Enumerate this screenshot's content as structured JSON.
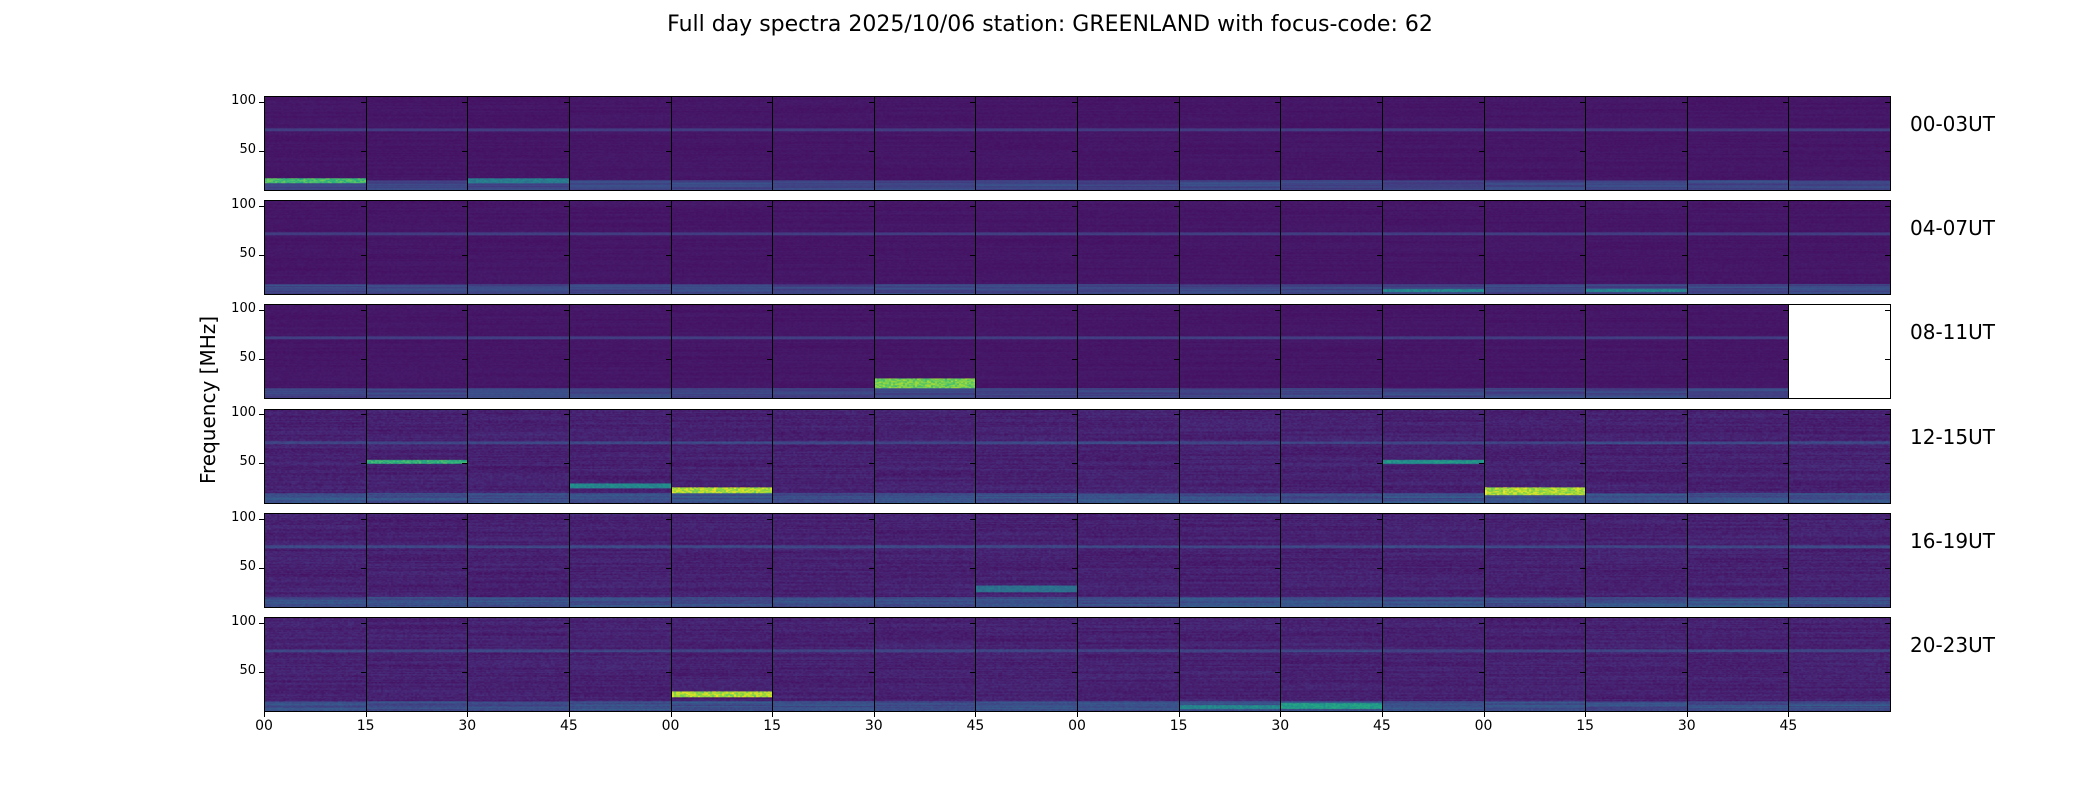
{
  "title": "Full day spectra 2025/10/06 station: GREENLAND with focus-code: 62",
  "chart_data": {
    "type": "heatmap",
    "title": "Full day spectra 2025/10/06 station: GREENLAND with focus-code: 62",
    "ylabel": "Frequency [MHz]",
    "ylim": [
      9,
      106
    ],
    "yticks": [
      "50",
      "100"
    ],
    "ytick_values": [
      50,
      100
    ],
    "xtick_labels": [
      "00",
      "15",
      "30",
      "45",
      "00",
      "15",
      "30",
      "45",
      "00",
      "15",
      "30",
      "45",
      "00",
      "15",
      "30",
      "45"
    ],
    "rows": [
      {
        "label": "00-03UT",
        "panels": 16
      },
      {
        "label": "04-07UT",
        "panels": 16
      },
      {
        "label": "08-11UT",
        "panels": 15
      },
      {
        "label": "12-15UT",
        "panels": 16
      },
      {
        "label": "16-19UT",
        "panels": 16
      },
      {
        "label": "20-23UT",
        "panels": 16
      }
    ],
    "colormap": "viridis",
    "colors": {
      "low": "#440154",
      "mid": "#21918c",
      "high": "#fde725"
    }
  }
}
